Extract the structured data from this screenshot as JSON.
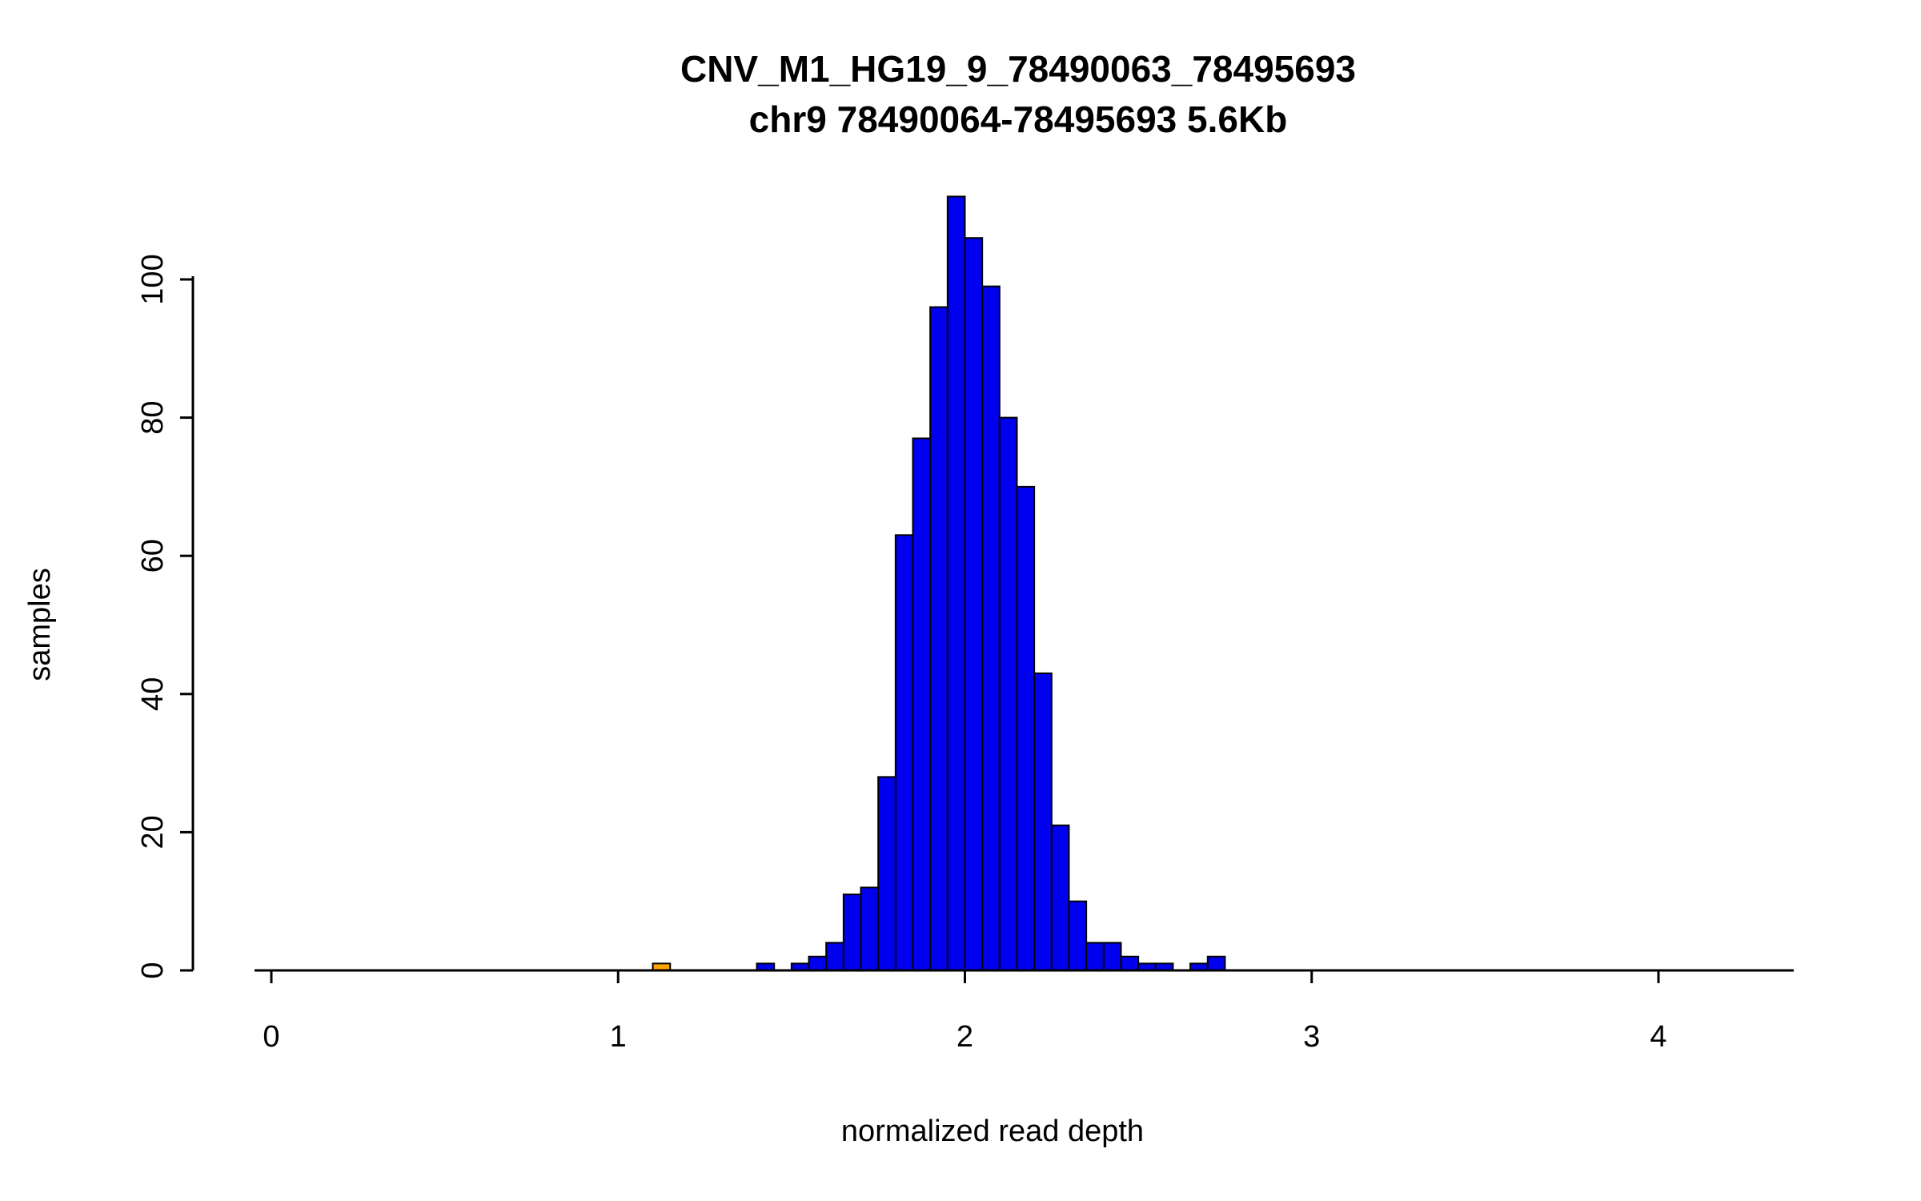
{
  "chart_data": {
    "type": "bar",
    "subtype": "histogram",
    "title": "CNV_M1_HG19_9_78490063_78495693",
    "subtitle": "chr9 78490064-78495693 5.6Kb",
    "xlabel": "normalized read depth",
    "ylabel": "samples",
    "xlim": [
      0,
      4.4
    ],
    "ylim": [
      0,
      112
    ],
    "x_ticks": [
      0,
      1,
      2,
      3,
      4
    ],
    "y_ticks": [
      0,
      20,
      40,
      60,
      80,
      100
    ],
    "bin_width": 0.05,
    "grid": false,
    "legend": "none",
    "colors": {
      "bar": "#0000EE",
      "highlight": "#FFA500",
      "stroke": "#000000",
      "axis": "#000000",
      "background": "#FFFFFF"
    },
    "bars": [
      {
        "x": 1.1,
        "count": 1,
        "color": "#FFA500"
      },
      {
        "x": 1.4,
        "count": 1
      },
      {
        "x": 1.5,
        "count": 1
      },
      {
        "x": 1.55,
        "count": 2
      },
      {
        "x": 1.6,
        "count": 4
      },
      {
        "x": 1.65,
        "count": 11
      },
      {
        "x": 1.7,
        "count": 12
      },
      {
        "x": 1.75,
        "count": 28
      },
      {
        "x": 1.8,
        "count": 63
      },
      {
        "x": 1.85,
        "count": 77
      },
      {
        "x": 1.9,
        "count": 96
      },
      {
        "x": 1.95,
        "count": 112
      },
      {
        "x": 2.0,
        "count": 106
      },
      {
        "x": 2.05,
        "count": 99
      },
      {
        "x": 2.1,
        "count": 80
      },
      {
        "x": 2.15,
        "count": 70
      },
      {
        "x": 2.2,
        "count": 43
      },
      {
        "x": 2.25,
        "count": 21
      },
      {
        "x": 2.3,
        "count": 10
      },
      {
        "x": 2.35,
        "count": 4
      },
      {
        "x": 2.4,
        "count": 4
      },
      {
        "x": 2.45,
        "count": 2
      },
      {
        "x": 2.5,
        "count": 1
      },
      {
        "x": 2.55,
        "count": 1
      },
      {
        "x": 2.65,
        "count": 1
      },
      {
        "x": 2.7,
        "count": 2
      }
    ]
  }
}
